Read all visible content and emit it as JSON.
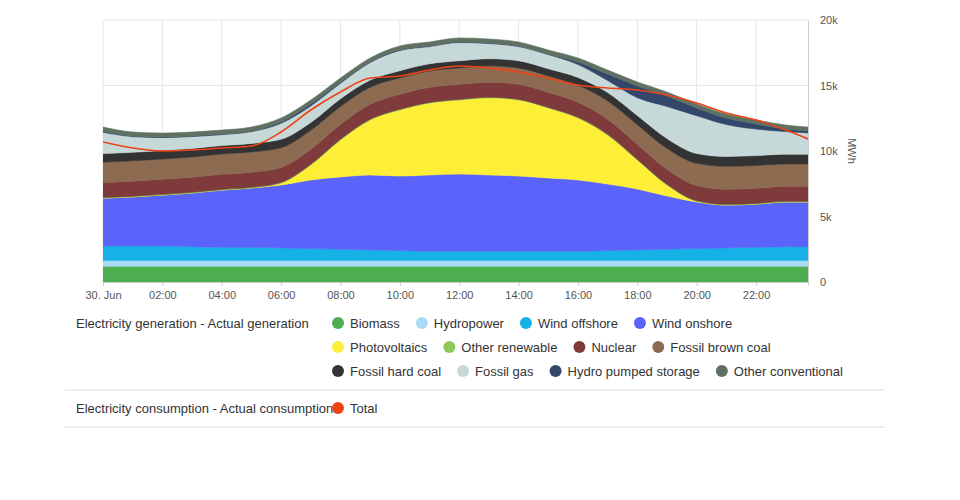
{
  "chart_data": {
    "type": "area",
    "stacked": true,
    "grid": true,
    "y_label": "MWh",
    "x": [
      0,
      1,
      2,
      3,
      4,
      5,
      6,
      7,
      8,
      9,
      10,
      11,
      12,
      13,
      14,
      15,
      16,
      17,
      18,
      19,
      20,
      21,
      22,
      23,
      23.75
    ],
    "xlim": [
      0,
      23.75
    ],
    "xticks": [
      {
        "value": 0,
        "label": "30. Jun"
      },
      {
        "value": 2,
        "label": "02:00"
      },
      {
        "value": 4,
        "label": "04:00"
      },
      {
        "value": 6,
        "label": "06:00"
      },
      {
        "value": 8,
        "label": "08:00"
      },
      {
        "value": 10,
        "label": "10:00"
      },
      {
        "value": 12,
        "label": "12:00"
      },
      {
        "value": 14,
        "label": "14:00"
      },
      {
        "value": 16,
        "label": "16:00"
      },
      {
        "value": 18,
        "label": "18:00"
      },
      {
        "value": 20,
        "label": "20:00"
      },
      {
        "value": 22,
        "label": "22:00"
      }
    ],
    "ylim": [
      0,
      20000
    ],
    "yticks": [
      0,
      {
        "value": 5000,
        "label": "5k"
      },
      {
        "value": 10000,
        "label": "10k"
      },
      {
        "value": 15000,
        "label": "15k"
      },
      {
        "value": 20000,
        "label": "20k"
      }
    ],
    "series": [
      {
        "name": "Biomass",
        "group": "Electricity generation - Actual generation",
        "type": "area",
        "color": "#4cae4f",
        "values": [
          1200,
          1200,
          1200,
          1200,
          1200,
          1200,
          1200,
          1200,
          1200,
          1200,
          1200,
          1200,
          1200,
          1200,
          1200,
          1200,
          1200,
          1200,
          1200,
          1200,
          1200,
          1200,
          1200,
          1200,
          1200
        ]
      },
      {
        "name": "Hydropower",
        "group": "Electricity generation - Actual generation",
        "type": "area",
        "color": "#a9dcf4",
        "values": [
          450,
          450,
          450,
          450,
          450,
          450,
          450,
          450,
          450,
          450,
          450,
          450,
          450,
          450,
          450,
          450,
          450,
          450,
          450,
          450,
          450,
          450,
          450,
          450,
          450
        ]
      },
      {
        "name": "Wind offshore",
        "group": "Electricity generation - Actual generation",
        "type": "area",
        "color": "#16b1e6",
        "values": [
          1100,
          1100,
          1100,
          1050,
          1000,
          1000,
          950,
          900,
          850,
          800,
          750,
          700,
          700,
          700,
          700,
          700,
          700,
          750,
          800,
          850,
          900,
          950,
          1000,
          1050,
          1050
        ]
      },
      {
        "name": "Wind onshore",
        "group": "Electricity generation - Actual generation",
        "type": "area",
        "color": "#5a64fa",
        "values": [
          3650,
          3750,
          3890,
          4100,
          4370,
          4530,
          4800,
          5240,
          5520,
          5720,
          5690,
          5820,
          5890,
          5820,
          5740,
          5590,
          5440,
          5080,
          4650,
          4060,
          3560,
          3280,
          3300,
          3410,
          3410
        ]
      },
      {
        "name": "Photovoltaics",
        "group": "Electricity generation - Actual generation",
        "type": "area",
        "color": "#fdef37",
        "values": [
          0,
          0,
          0,
          0,
          0,
          0,
          150,
          1140,
          2820,
          4200,
          5040,
          5490,
          5650,
          5880,
          5800,
          5340,
          4730,
          3740,
          2210,
          840,
          50,
          0,
          0,
          0,
          0
        ]
      },
      {
        "name": "Other renewable",
        "group": "Electricity generation - Actual generation",
        "type": "area",
        "color": "#8bc95a",
        "values": [
          50,
          50,
          50,
          50,
          50,
          50,
          50,
          50,
          50,
          50,
          50,
          50,
          50,
          50,
          50,
          50,
          50,
          50,
          50,
          50,
          50,
          50,
          50,
          50,
          50
        ]
      },
      {
        "name": "Nuclear",
        "group": "Electricity generation - Actual generation",
        "type": "area",
        "color": "#7f3a3c",
        "values": [
          1150,
          1150,
          1150,
          1150,
          1150,
          1150,
          1150,
          1150,
          1150,
          1150,
          1150,
          1150,
          1150,
          1150,
          1150,
          1150,
          1150,
          1150,
          1150,
          1150,
          1150,
          1150,
          1150,
          1150,
          1150
        ]
      },
      {
        "name": "Fossil brown coal",
        "group": "Electricity generation - Actual generation",
        "type": "area",
        "color": "#8c6b50",
        "values": [
          1550,
          1550,
          1550,
          1550,
          1550,
          1550,
          1500,
          1450,
          1350,
          1300,
          1250,
          1250,
          1250,
          1250,
          1250,
          1250,
          1300,
          1400,
          1500,
          1600,
          1700,
          1750,
          1750,
          1700,
          1700
        ]
      },
      {
        "name": "Fossil hard coal",
        "group": "Electricity generation - Actual generation",
        "type": "area",
        "color": "#333333",
        "values": [
          650,
          650,
          650,
          650,
          650,
          650,
          650,
          600,
          600,
          550,
          550,
          550,
          550,
          550,
          550,
          550,
          600,
          650,
          700,
          750,
          750,
          750,
          750,
          750,
          750
        ]
      },
      {
        "name": "Fossil gas",
        "group": "Electricity generation - Actual generation",
        "type": "area",
        "color": "#c6d8d8",
        "values": [
          1630,
          1200,
          980,
          900,
          830,
          900,
          1220,
          1260,
          1180,
          1330,
          1540,
          1310,
          1390,
          1150,
          1080,
          1080,
          980,
          910,
          1360,
          2450,
          2880,
          2440,
          2020,
          1720,
          1620
        ]
      },
      {
        "name": "Hydro pumped storage",
        "group": "Electricity generation - Actual generation",
        "type": "area",
        "color": "#33476b",
        "values": [
          100,
          50,
          50,
          50,
          50,
          50,
          100,
          150,
          100,
          50,
          50,
          50,
          50,
          50,
          50,
          50,
          200,
          500,
          900,
          800,
          600,
          500,
          400,
          200,
          150
        ]
      },
      {
        "name": "Other conventional",
        "group": "Electricity generation - Actual generation",
        "type": "area",
        "color": "#5f7161",
        "values": [
          300,
          300,
          300,
          300,
          300,
          300,
          300,
          300,
          300,
          300,
          300,
          300,
          300,
          300,
          300,
          300,
          300,
          300,
          300,
          300,
          300,
          300,
          300,
          300,
          300
        ]
      },
      {
        "name": "Total",
        "group": "Electricity consumption - Actual consumption",
        "type": "line",
        "color": "#ee4317",
        "values": [
          10690,
          10230,
          10000,
          10080,
          10230,
          10380,
          11450,
          13130,
          14500,
          15570,
          15730,
          16180,
          16490,
          16340,
          16030,
          15570,
          15040,
          14810,
          14660,
          14270,
          13660,
          12900,
          12370,
          11600,
          10920
        ]
      }
    ]
  }
}
